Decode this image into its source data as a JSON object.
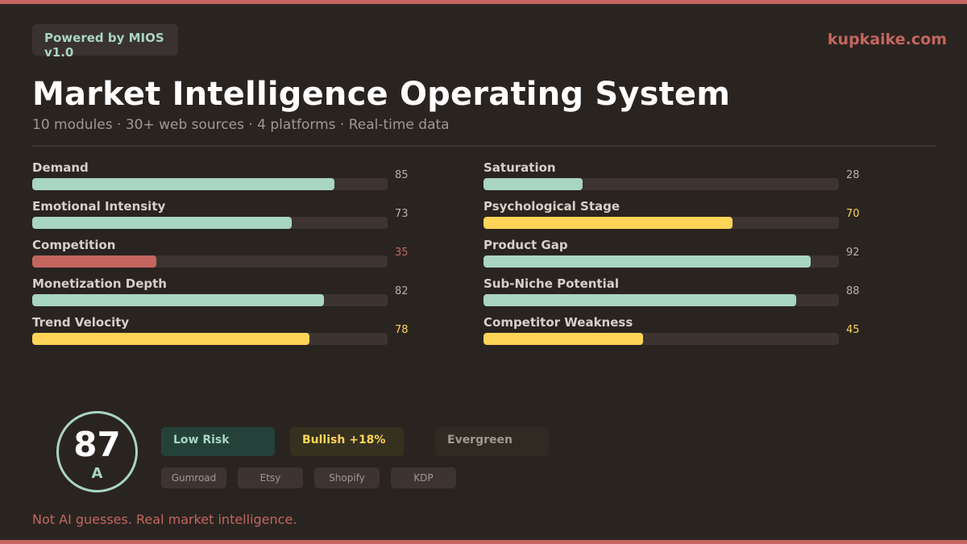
{
  "header": {
    "powered_by": "Powered by MIOS v1.0",
    "site": "kupkaike.com",
    "title": "Market Intelligence Operating System",
    "subtitle": "10 modules · 30+ web sources · 4 platforms · Real-time data"
  },
  "colors": {
    "teal": "#a9d5c3",
    "yellow": "#ffd457",
    "red": "#c4665f",
    "track": "#3d3432",
    "value_gray": "#b8b0a8"
  },
  "metrics": {
    "left": [
      {
        "label": "Demand",
        "value": 85,
        "color": "teal"
      },
      {
        "label": "Emotional Intensity",
        "value": 73,
        "color": "teal"
      },
      {
        "label": "Competition",
        "value": 35,
        "color": "red"
      },
      {
        "label": "Monetization Depth",
        "value": 82,
        "color": "teal"
      },
      {
        "label": "Trend Velocity",
        "value": 78,
        "color": "yellow"
      }
    ],
    "right": [
      {
        "label": "Saturation",
        "value": 28,
        "color": "teal"
      },
      {
        "label": "Psychological Stage",
        "value": 70,
        "color": "yellow"
      },
      {
        "label": "Product Gap",
        "value": 92,
        "color": "teal"
      },
      {
        "label": "Sub-Niche Potential",
        "value": 88,
        "color": "teal"
      },
      {
        "label": "Competitor Weakness",
        "value": 45,
        "color": "yellow"
      }
    ]
  },
  "score": {
    "value": "87",
    "grade": "A"
  },
  "badges": {
    "risk": "Low Risk",
    "trend": "Bullish +18%",
    "lifecycle": "Evergreen"
  },
  "platforms": [
    "Gumroad",
    "Etsy",
    "Shopify",
    "KDP"
  ],
  "tagline": "Not AI guesses. Real market intelligence."
}
